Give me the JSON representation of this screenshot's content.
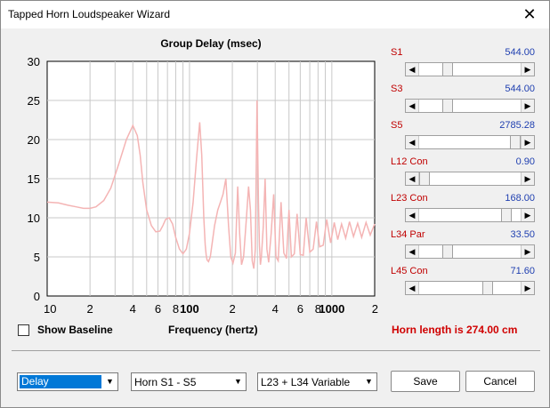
{
  "window": {
    "title": "Tapped Horn Loudspeaker Wizard",
    "close_glyph": "✕"
  },
  "chart_data": {
    "type": "line",
    "title": "Group Delay (msec)",
    "xlabel": "Frequency (hertz)",
    "ylabel": "",
    "xscale": "log",
    "xlim": [
      10,
      2000
    ],
    "ylim": [
      0,
      30
    ],
    "y_ticks": [
      "0",
      "5",
      "10",
      "15",
      "20",
      "25",
      "30"
    ],
    "x_ticks": [
      {
        "label": "10",
        "value": 10
      },
      {
        "label": "2",
        "value": 20
      },
      {
        "label": "4",
        "value": 40
      },
      {
        "label": "6",
        "value": 60
      },
      {
        "label": "8",
        "value": 80
      },
      {
        "label": "100",
        "value": 100,
        "bold": true
      },
      {
        "label": "2",
        "value": 200
      },
      {
        "label": "4",
        "value": 400
      },
      {
        "label": "6",
        "value": 600
      },
      {
        "label": "8",
        "value": 800
      },
      {
        "label": "1000",
        "value": 1000,
        "bold": true
      },
      {
        "label": "2",
        "value": 2000
      }
    ],
    "grid": true,
    "line_color": "#f4b4b4",
    "series": [
      {
        "x": [
          10,
          12,
          14,
          16,
          18,
          20,
          22,
          25,
          28,
          32,
          36,
          40,
          43,
          45,
          47,
          50,
          54,
          58,
          62,
          65,
          68,
          72,
          76,
          80,
          85,
          90,
          95,
          100,
          106,
          112,
          118,
          122,
          126,
          129,
          131,
          133,
          136,
          140,
          145,
          150,
          158,
          165,
          172,
          180,
          188,
          195,
          202,
          210,
          218,
          225,
          232,
          240,
          250,
          260,
          268,
          276,
          283,
          290,
          298,
          305,
          310,
          315,
          320,
          330,
          340,
          350,
          360,
          375,
          390,
          405,
          420,
          440,
          460,
          480,
          500,
          520,
          545,
          570,
          600,
          630,
          660,
          700,
          740,
          780,
          820,
          870,
          920,
          980,
          1040,
          1100,
          1170,
          1250,
          1330,
          1420,
          1520,
          1620,
          1740,
          1860,
          2000
        ],
        "y": [
          12,
          11.9,
          11.6,
          11.4,
          11.2,
          11.2,
          11.4,
          12.2,
          13.8,
          17,
          20,
          21.8,
          20.5,
          18,
          14.5,
          11,
          9,
          8.2,
          8.3,
          9,
          9.8,
          10,
          9.2,
          7.5,
          6,
          5.4,
          6,
          8,
          12,
          17.5,
          22.2,
          18,
          10,
          6.5,
          5.2,
          4.6,
          4.4,
          5,
          7,
          9,
          11,
          12,
          13,
          15,
          9,
          5,
          4.2,
          5.5,
          14,
          8,
          4,
          5,
          9.5,
          14,
          11,
          4.5,
          3.5,
          6,
          25,
          12,
          6.5,
          4,
          5,
          9,
          15,
          6,
          4.3,
          8,
          13,
          5,
          4.5,
          12,
          5.5,
          4.8,
          11,
          5,
          5.4,
          10.5,
          5.3,
          5.2,
          10,
          5.6,
          6,
          9.5,
          6.3,
          6.5,
          9.8,
          6.8,
          9.4,
          7.2,
          9.2,
          7.4,
          9.5,
          7.6,
          9.3,
          7.5,
          9.4,
          7.8,
          9.2
        ]
      }
    ]
  },
  "params": [
    {
      "name": "S1",
      "value": "544.00",
      "thumb_fraction": 0.25
    },
    {
      "name": "S3",
      "value": "544.00",
      "thumb_fraction": 0.25
    },
    {
      "name": "S5",
      "value": "2785.28",
      "thumb_fraction": 1.0
    },
    {
      "name": "L12 Con",
      "value": "0.90",
      "thumb_fraction": 0.0
    },
    {
      "name": "L23 Con",
      "value": "168.00",
      "thumb_fraction": 0.9
    },
    {
      "name": "L34 Par",
      "value": "33.50",
      "thumb_fraction": 0.25
    },
    {
      "name": "L45 Con",
      "value": "71.60",
      "thumb_fraction": 0.7
    }
  ],
  "show_baseline": {
    "label": "Show Baseline",
    "checked": false
  },
  "freq_label": "Frequency (hertz)",
  "horn_length": "Horn length is 274.00 cm",
  "combo1": {
    "value": "Delay",
    "arrow": "▼"
  },
  "combo2": {
    "value": "Horn S1 - S5",
    "arrow": "▼"
  },
  "combo3": {
    "value": "L23 + L34 Variable",
    "arrow": "▼"
  },
  "buttons": {
    "save": "Save",
    "cancel": "Cancel"
  }
}
